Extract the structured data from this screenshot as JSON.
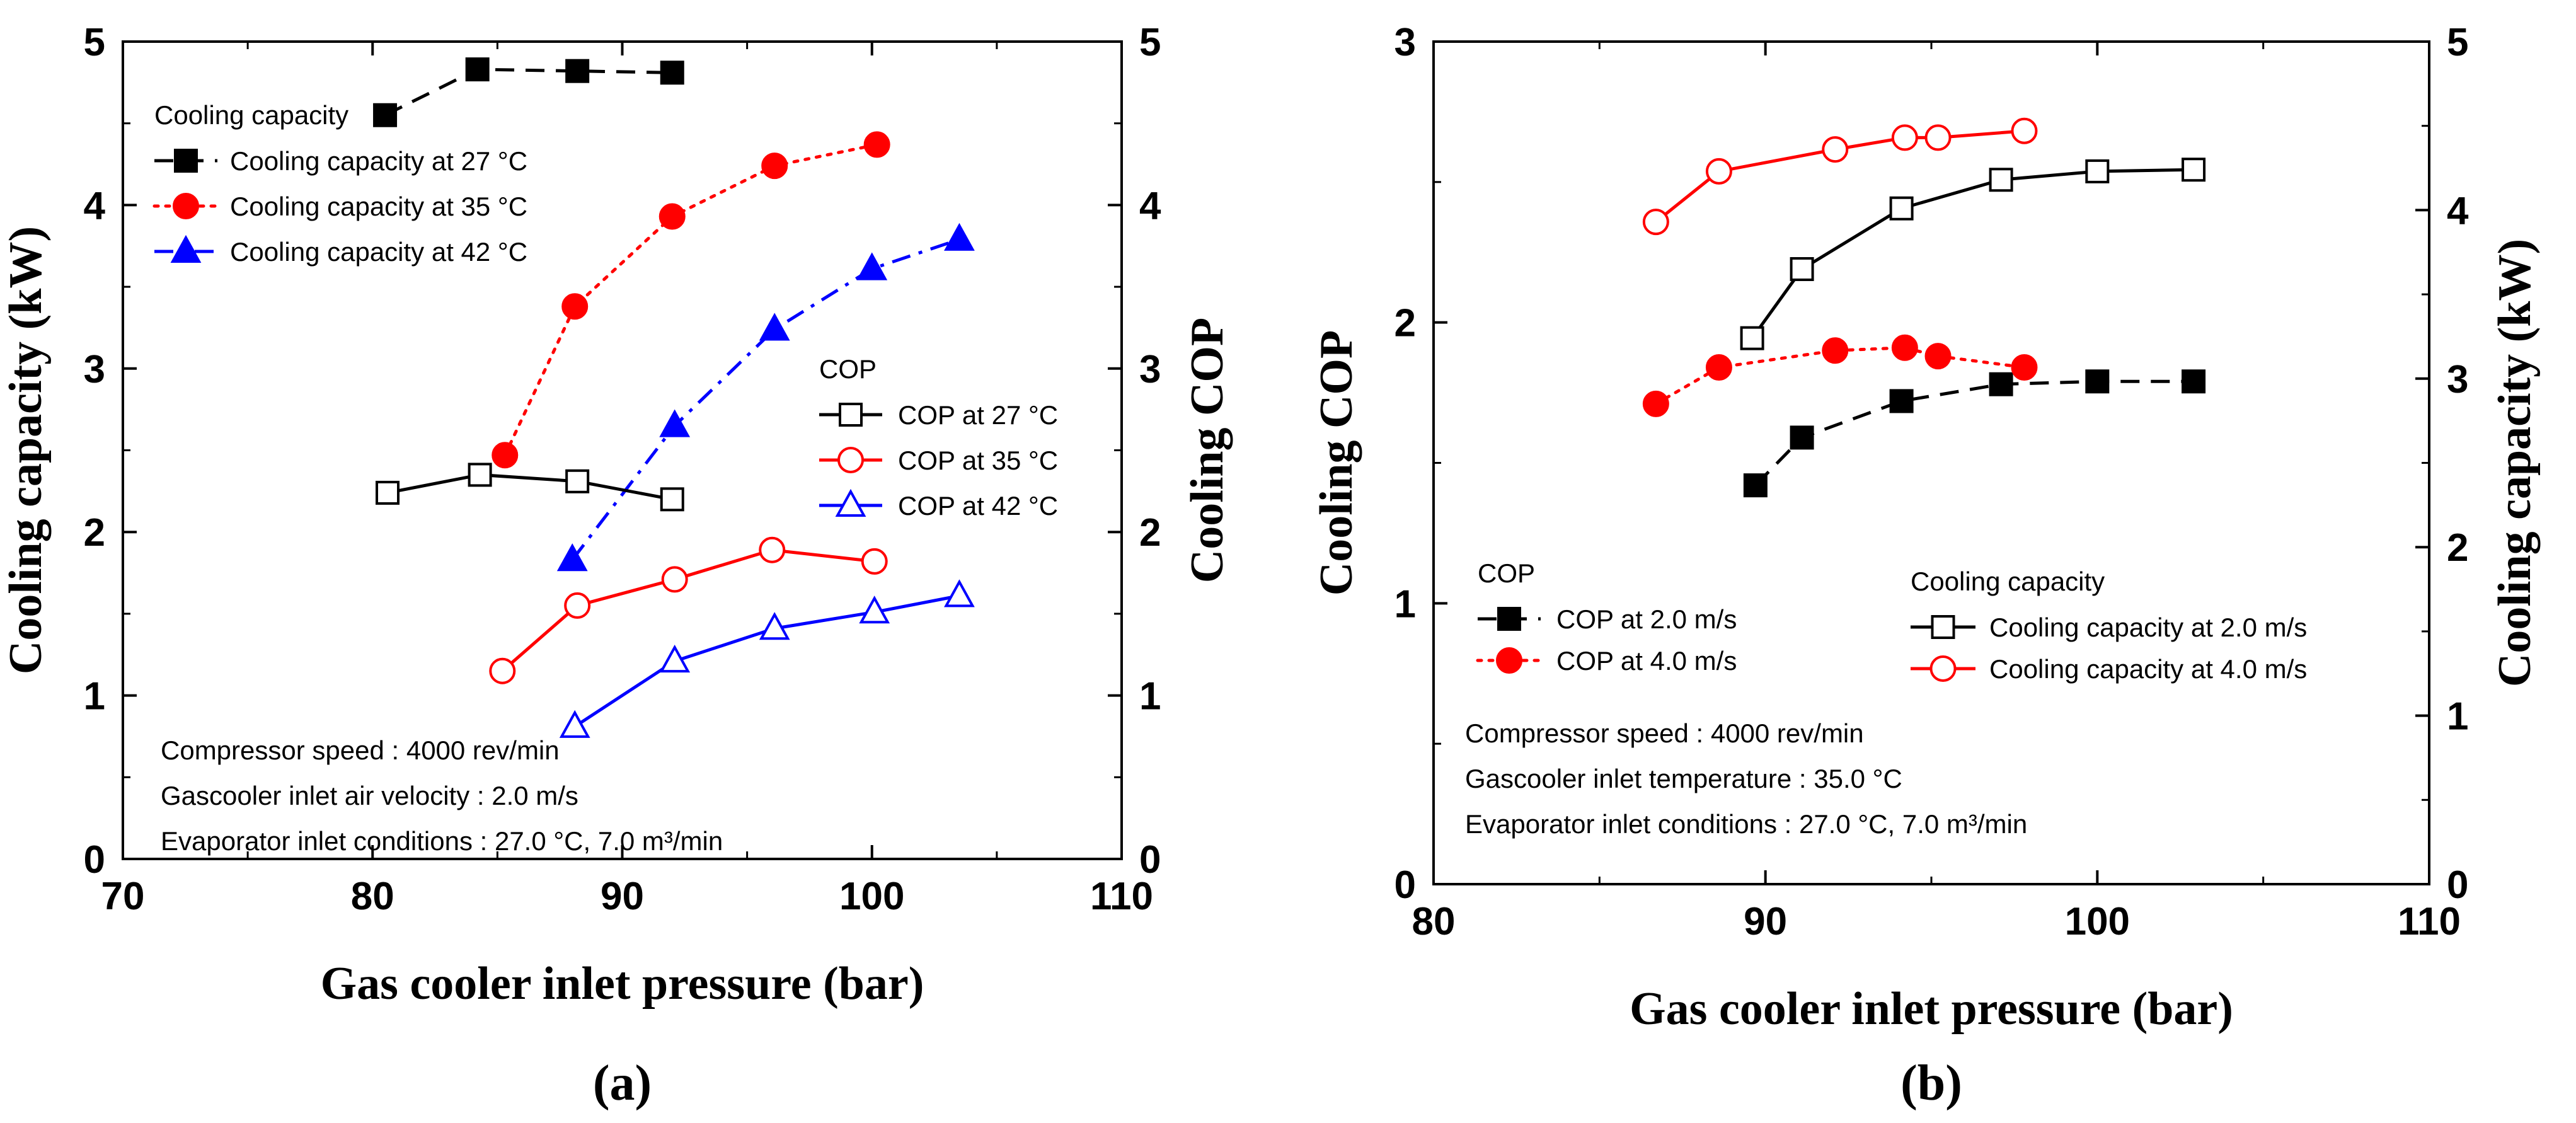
{
  "chart_data": [
    {
      "id": "a",
      "type": "line",
      "panel_label": "(a)",
      "xlabel": "Gas cooler inlet pressure (bar)",
      "ylabel": "Cooling capacity (kW)",
      "y2label": "Cooling COP",
      "xlim": [
        70,
        110
      ],
      "ylim": [
        0,
        5
      ],
      "y2lim": [
        0,
        5
      ],
      "xticks": [
        70,
        80,
        90,
        100,
        110
      ],
      "yticks": [
        0,
        1,
        2,
        3,
        4,
        5
      ],
      "y2ticks": [
        0,
        1,
        2,
        3,
        4,
        5
      ],
      "legend_groups": [
        {
          "title": "Cooling capacity",
          "position": "top-left",
          "entries": [
            "Cooling capacity at 27 °C",
            "Cooling capacity at 35 °C",
            "Cooling capacity at 42 °C"
          ]
        },
        {
          "title": "COP",
          "position": "center-right",
          "entries": [
            "COP at  27 °C",
            "COP at  35 °C",
            "COP at  42 °C"
          ]
        }
      ],
      "annotations": [
        "Compressor speed : 4000 rev/min",
        "Gascooler inlet air velocity :  2.0 m/s",
        "Evaporator inlet conditions : 27.0 °C, 7.0 m³/min"
      ],
      "series": [
        {
          "name": "Cooling capacity at 27 °C",
          "axis": "left",
          "color": "#000000",
          "dash": "dashed",
          "marker": "square",
          "filled": true,
          "x": [
            80.5,
            84.2,
            88.2,
            92.0
          ],
          "y": [
            4.55,
            4.83,
            4.82,
            4.81
          ]
        },
        {
          "name": "Cooling capacity at 35 °C",
          "axis": "left",
          "color": "#ff0000",
          "dash": "dotted",
          "marker": "circle",
          "filled": true,
          "x": [
            85.3,
            88.1,
            92.0,
            96.1,
            100.2
          ],
          "y": [
            2.47,
            3.38,
            3.93,
            4.24,
            4.37
          ]
        },
        {
          "name": "Cooling capacity at 42 °C",
          "axis": "left",
          "color": "#0000ff",
          "dash": "dashdot",
          "marker": "triangle",
          "filled": true,
          "x": [
            88.0,
            92.1,
            96.1,
            100.0,
            103.5
          ],
          "y": [
            1.83,
            2.65,
            3.24,
            3.61,
            3.79
          ]
        },
        {
          "name": "COP at  27 °C",
          "axis": "right",
          "color": "#000000",
          "dash": "solid",
          "marker": "square",
          "filled": false,
          "x": [
            80.6,
            84.3,
            88.2,
            92.0
          ],
          "y": [
            2.24,
            2.35,
            2.31,
            2.2
          ]
        },
        {
          "name": "COP at  35 °C",
          "axis": "right",
          "color": "#ff0000",
          "dash": "solid",
          "marker": "circle",
          "filled": false,
          "x": [
            85.2,
            88.2,
            92.1,
            96.0,
            100.1
          ],
          "y": [
            1.15,
            1.55,
            1.71,
            1.89,
            1.82
          ]
        },
        {
          "name": "COP at  42 °C",
          "axis": "right",
          "color": "#0000ff",
          "dash": "solid",
          "marker": "triangle",
          "filled": false,
          "x": [
            88.1,
            92.1,
            96.1,
            100.1,
            103.5
          ],
          "y": [
            0.81,
            1.21,
            1.41,
            1.51,
            1.61
          ]
        }
      ]
    },
    {
      "id": "b",
      "type": "line",
      "panel_label": "(b)",
      "xlabel": "Gas cooler inlet pressure (bar)",
      "ylabel": "Cooling COP",
      "y2label": "Cooling capacity (kW)",
      "xlim": [
        80,
        110
      ],
      "ylim": [
        0,
        3
      ],
      "y2lim": [
        0,
        5
      ],
      "xticks": [
        80,
        90,
        100,
        110
      ],
      "yticks": [
        0,
        1,
        2,
        3
      ],
      "y2ticks": [
        0,
        1,
        2,
        3,
        4,
        5
      ],
      "legend_groups": [
        {
          "title": "COP",
          "position": "center-left",
          "entries": [
            "COP at 2.0 m/s",
            "COP at 4.0 m/s"
          ]
        },
        {
          "title": "Cooling capacity",
          "position": "center-right",
          "entries": [
            "Cooling capacity at 2.0 m/s",
            "Cooling capacity at 4.0 m/s"
          ]
        }
      ],
      "annotations": [
        "Compressor speed : 4000 rev/min",
        "Gascooler inlet temperature :  35.0 °C",
        "Evaporator inlet conditions : 27.0 °C, 7.0 m³/min"
      ],
      "series": [
        {
          "name": "COP at 2.0 m/s",
          "axis": "left",
          "color": "#000000",
          "dash": "dashed",
          "marker": "square",
          "filled": true,
          "x": [
            89.7,
            91.1,
            94.1,
            97.1,
            100.0,
            102.9
          ],
          "y": [
            1.42,
            1.59,
            1.72,
            1.78,
            1.79,
            1.79
          ]
        },
        {
          "name": "COP at 4.0 m/s",
          "axis": "left",
          "color": "#ff0000",
          "dash": "dotted",
          "marker": "circle",
          "filled": true,
          "x": [
            86.7,
            88.6,
            92.1,
            94.2,
            95.2,
            97.8
          ],
          "y": [
            1.71,
            1.84,
            1.9,
            1.91,
            1.88,
            1.84
          ]
        },
        {
          "name": "Cooling capacity at 2.0 m/s",
          "axis": "right",
          "color": "#000000",
          "dash": "solid",
          "marker": "square",
          "filled": false,
          "x": [
            89.6,
            91.1,
            94.1,
            97.1,
            100.0,
            102.9
          ],
          "y": [
            3.24,
            3.65,
            4.01,
            4.18,
            4.23,
            4.24
          ]
        },
        {
          "name": "Cooling capacity at 4.0 m/s",
          "axis": "right",
          "color": "#ff0000",
          "dash": "solid",
          "marker": "circle",
          "filled": false,
          "x": [
            86.7,
            88.6,
            92.1,
            94.2,
            95.2,
            97.8
          ],
          "y": [
            3.93,
            4.23,
            4.36,
            4.43,
            4.43,
            4.47
          ]
        }
      ]
    }
  ]
}
